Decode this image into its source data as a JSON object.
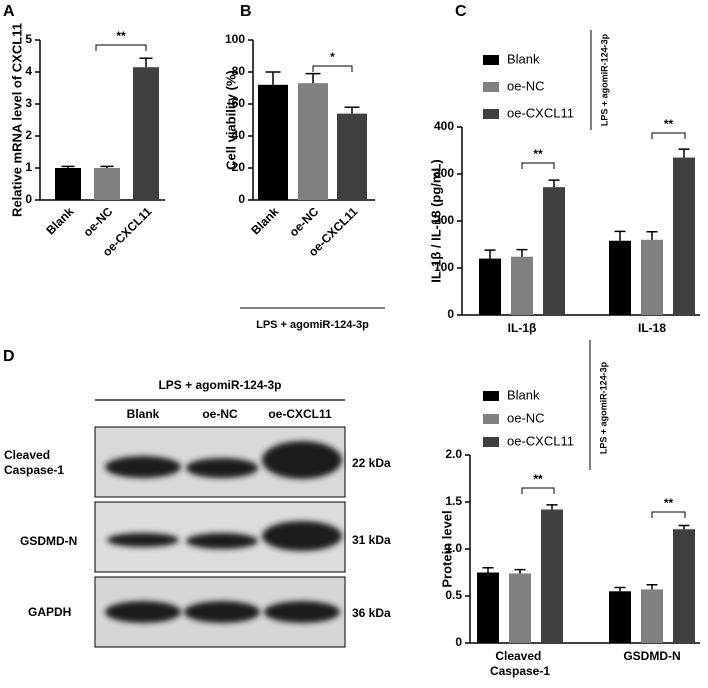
{
  "chart_data": [
    {
      "type": "bar",
      "panel": "A",
      "ylabel": "Relative mRNA level of CXCL11",
      "categories": [
        "Blank",
        "oe-NC",
        "oe-CXCL11"
      ],
      "values": [
        1.0,
        1.0,
        4.15
      ],
      "errors": [
        0.05,
        0.05,
        0.28
      ],
      "colors": [
        "#000000",
        "#808080",
        "#404040"
      ],
      "ylim": [
        0,
        5
      ],
      "yticks": [
        0,
        1,
        2,
        3,
        4,
        5
      ],
      "annotations": [
        "**"
      ]
    },
    {
      "type": "bar",
      "panel": "B",
      "ylabel": "Cell viability (%)",
      "xlabel": "LPS + agomiR-124-3p",
      "categories": [
        "Blank",
        "oe-NC",
        "oe-CXCL11"
      ],
      "values": [
        72,
        73,
        54
      ],
      "errors": [
        8,
        6,
        4
      ],
      "colors": [
        "#000000",
        "#808080",
        "#404040"
      ],
      "ylim": [
        0,
        100
      ],
      "yticks": [
        0,
        20,
        40,
        60,
        80,
        100
      ],
      "annotations": [
        "*"
      ]
    },
    {
      "type": "bar",
      "panel": "C",
      "ylabel": "IL-1β / IL-18  (pg/mL)",
      "legend_note": "LPS + agomiR-124-3p",
      "categories": [
        "IL-1β",
        "IL-18"
      ],
      "series": [
        {
          "name": "Blank",
          "color": "#000000",
          "values": [
            120,
            158
          ],
          "errors": [
            18,
            20
          ]
        },
        {
          "name": "oe-NC",
          "color": "#808080",
          "values": [
            124,
            160
          ],
          "errors": [
            15,
            17
          ]
        },
        {
          "name": "oe-CXCL11",
          "color": "#404040",
          "values": [
            272,
            335
          ],
          "errors": [
            15,
            18
          ]
        }
      ],
      "ylim": [
        0,
        400
      ],
      "yticks": [
        0,
        100,
        200,
        300,
        400
      ],
      "annotations": [
        "**",
        "**"
      ]
    },
    {
      "type": "bar",
      "panel": "D",
      "ylabel": "Protein level",
      "legend_note": "LPS + agomiR-124-3p",
      "categories": [
        "Cleaved Caspase-1",
        "GSDMD-N"
      ],
      "series": [
        {
          "name": "Blank",
          "color": "#000000",
          "values": [
            0.75,
            0.55
          ],
          "errors": [
            0.05,
            0.04
          ]
        },
        {
          "name": "oe-NC",
          "color": "#808080",
          "values": [
            0.74,
            0.57
          ],
          "errors": [
            0.04,
            0.05
          ]
        },
        {
          "name": "oe-CXCL11",
          "color": "#404040",
          "values": [
            1.42,
            1.21
          ],
          "errors": [
            0.05,
            0.04
          ]
        }
      ],
      "ylim": [
        0,
        2
      ],
      "yticks": [
        0,
        0.5,
        {
          "value": 1,
          "label": "1.0"
        },
        1.5,
        {
          "value": 2,
          "label": "2.0"
        }
      ],
      "annotations": [
        "**",
        "**"
      ]
    }
  ],
  "blot": {
    "header": "LPS + agomiR-124-3p",
    "lanes": [
      "Blank",
      "oe-NC",
      "oe-CXCL11"
    ],
    "rows": [
      {
        "label": "Cleaved Caspase-1",
        "size": "22 kDa"
      },
      {
        "label": "GSDMD-N",
        "size": "31 kDa"
      },
      {
        "label": "GAPDH",
        "size": "36 kDa"
      }
    ]
  }
}
